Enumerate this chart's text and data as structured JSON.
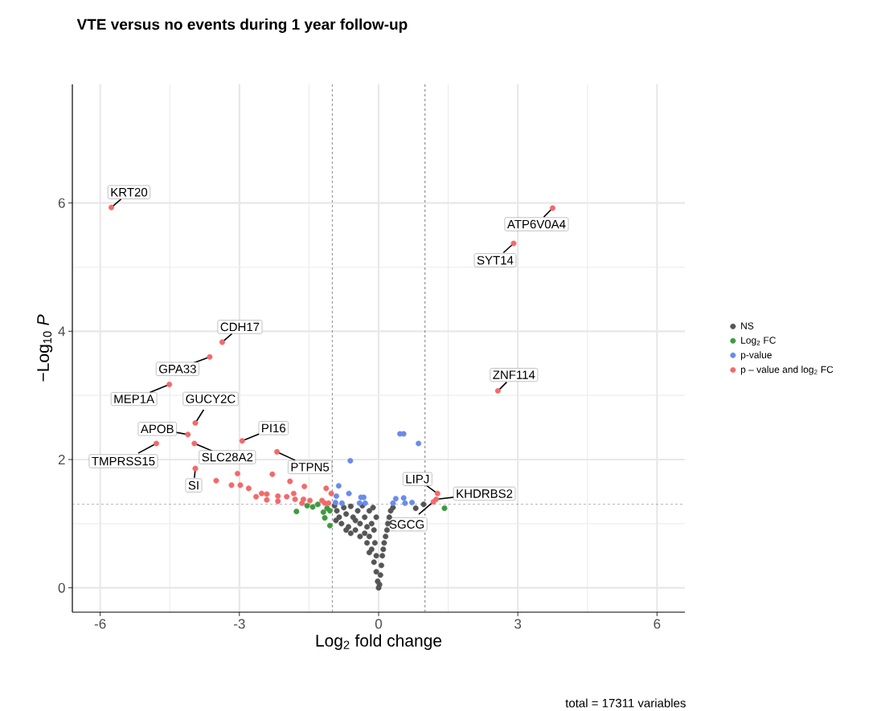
{
  "chart_data": {
    "type": "scatter",
    "title": "VTE versus no events during 1 year follow-up",
    "xlabel": "Log$_{2}$ fold change",
    "ylabel": "−Log$_{10}$ *P*",
    "xlim": [
      -6.6,
      6.6
    ],
    "ylim": [
      -0.38,
      7.85
    ],
    "xticks": [
      -6,
      -3,
      0,
      3,
      6
    ],
    "yticks": [
      0,
      2,
      4,
      6
    ],
    "grid": true,
    "legend": "right",
    "ref_lines": [
      {
        "axis": "x",
        "value": -1,
        "line_style": "dashed"
      },
      {
        "axis": "x",
        "value": 1,
        "line_style": "dashed"
      },
      {
        "axis": "y",
        "value": 1.3,
        "line_style": "dashed"
      }
    ],
    "series": [
      {
        "name": "NS",
        "color": "#555555",
        "x": [
          -0.95,
          -0.9,
          -0.85,
          -0.8,
          -0.75,
          -0.7,
          -0.65,
          -0.6,
          -0.55,
          -0.5,
          -0.45,
          -0.4,
          -0.4,
          -0.35,
          -0.3,
          -0.3,
          -0.25,
          -0.25,
          -0.2,
          -0.2,
          -0.2,
          -0.15,
          -0.15,
          -0.1,
          -0.1,
          -0.08,
          -0.05,
          -0.05,
          -0.02,
          0,
          0.02,
          0.04,
          0.06,
          0.08,
          0.1,
          0.12,
          0.15,
          0.18,
          0.2,
          0.23,
          0.26,
          0.3,
          0.31,
          0.77,
          0.8,
          0.97,
          -0.12,
          -0.05,
          -0.92,
          -0.7,
          -0.5,
          -0.6
        ],
        "values": [
          1.28,
          1.2,
          1.1,
          1.0,
          1.25,
          1.15,
          0.95,
          1.27,
          1.1,
          0.9,
          1.2,
          1.0,
          0.8,
          1.28,
          1.1,
          0.85,
          0.95,
          0.7,
          1.2,
          0.8,
          0.55,
          1.0,
          0.6,
          0.9,
          0.4,
          0.7,
          0.5,
          0.25,
          0.1,
          0,
          0.05,
          0.2,
          0.35,
          0.5,
          0.6,
          0.7,
          0.8,
          0.9,
          1.0,
          1.1,
          1.2,
          null,
          1.25,
          null,
          1.24,
          1.3,
          1.25,
          1.1,
          1.05,
          0.9,
          1.05,
          0.85
        ]
      },
      {
        "name": "Log$_{2}$ FC",
        "color": "#3f9a3f",
        "x": [
          -1.77,
          -1.54,
          -1.42,
          -1.31,
          -1.19,
          -1.16,
          -1.05,
          -1.05,
          -1.11,
          1.42
        ],
        "values": [
          1.19,
          1.28,
          1.26,
          1.3,
          1.18,
          1.09,
          1.2,
          0.97,
          1.24,
          1.24
        ]
      },
      {
        "name": "p-value",
        "color": "#6a8be8",
        "x": [
          0.46,
          0.54,
          0.86,
          -0.61,
          -0.86,
          -0.64,
          -0.91,
          -0.38,
          -0.32,
          -0.93,
          -0.79,
          -0.41,
          -0.29,
          0.37,
          0.54,
          0.72,
          0.31,
          0.57
        ],
        "values": [
          2.4,
          2.4,
          2.25,
          1.98,
          1.59,
          1.47,
          1.43,
          1.41,
          1.41,
          1.33,
          1.32,
          1.32,
          1.32,
          1.39,
          1.4,
          1.33,
          1.32,
          1.32
        ]
      },
      {
        "name": "p – value and log$_{2}$ FC",
        "color": "#f26a6a",
        "x": [
          -5.76,
          3.75,
          2.91,
          2.57,
          -3.37,
          -3.64,
          -4.51,
          -3.95,
          -4.11,
          -4.79,
          -3.97,
          -2.94,
          -2.19,
          -3.95,
          -3.04,
          -3.5,
          -3.17,
          -2.98,
          -2.8,
          -2.29,
          -1.91,
          -1.6,
          -1.13,
          -1.02,
          -2.64,
          -2.52,
          -2.41,
          -2.41,
          -2.17,
          -2.17,
          -1.98,
          -1.83,
          -1.8,
          -1.62,
          -1.65,
          -1.48,
          -1.22,
          -1.16,
          -1.08,
          1.27,
          1.24,
          1.18
        ],
        "values": [
          5.93,
          5.92,
          5.37,
          3.07,
          3.83,
          3.6,
          3.17,
          2.57,
          2.39,
          2.25,
          2.25,
          2.29,
          2.12,
          1.86,
          1.78,
          1.67,
          1.6,
          1.6,
          1.55,
          1.77,
          1.66,
          1.58,
          1.55,
          1.47,
          1.42,
          1.47,
          1.46,
          1.37,
          1.43,
          1.35,
          1.42,
          1.47,
          1.38,
          1.38,
          1.32,
          1.36,
          1.36,
          1.32,
          1.32,
          1.47,
          1.38,
          1.34
        ]
      }
    ],
    "annotations": [
      {
        "text": "KRT20",
        "x": -5.76,
        "y": 5.93
      },
      {
        "text": "ATP6V0A4",
        "x": 3.75,
        "y": 5.92
      },
      {
        "text": "SYT14",
        "x": 2.91,
        "y": 5.37
      },
      {
        "text": "ZNF114",
        "x": 2.57,
        "y": 3.07
      },
      {
        "text": "CDH17",
        "x": -3.37,
        "y": 3.83
      },
      {
        "text": "GPA33",
        "x": -3.64,
        "y": 3.6
      },
      {
        "text": "MEP1A",
        "x": -4.51,
        "y": 3.17
      },
      {
        "text": "GUCY2C",
        "x": -3.95,
        "y": 2.57
      },
      {
        "text": "APOB",
        "x": -4.11,
        "y": 2.39
      },
      {
        "text": "TMPRSS15",
        "x": -4.79,
        "y": 2.25
      },
      {
        "text": "SLC28A2",
        "x": -3.97,
        "y": 2.25
      },
      {
        "text": "PI16",
        "x": -2.94,
        "y": 2.29
      },
      {
        "text": "PTPN5",
        "x": -2.19,
        "y": 2.12
      },
      {
        "text": "SI",
        "x": -3.95,
        "y": 1.86
      },
      {
        "text": "LIPJ",
        "x": 1.27,
        "y": 1.47
      },
      {
        "text": "KHDRBS2",
        "x": 1.24,
        "y": 1.38
      },
      {
        "text": "SGCG",
        "x": 1.18,
        "y": 1.34
      },
      "total = 17311 variables"
    ]
  }
}
